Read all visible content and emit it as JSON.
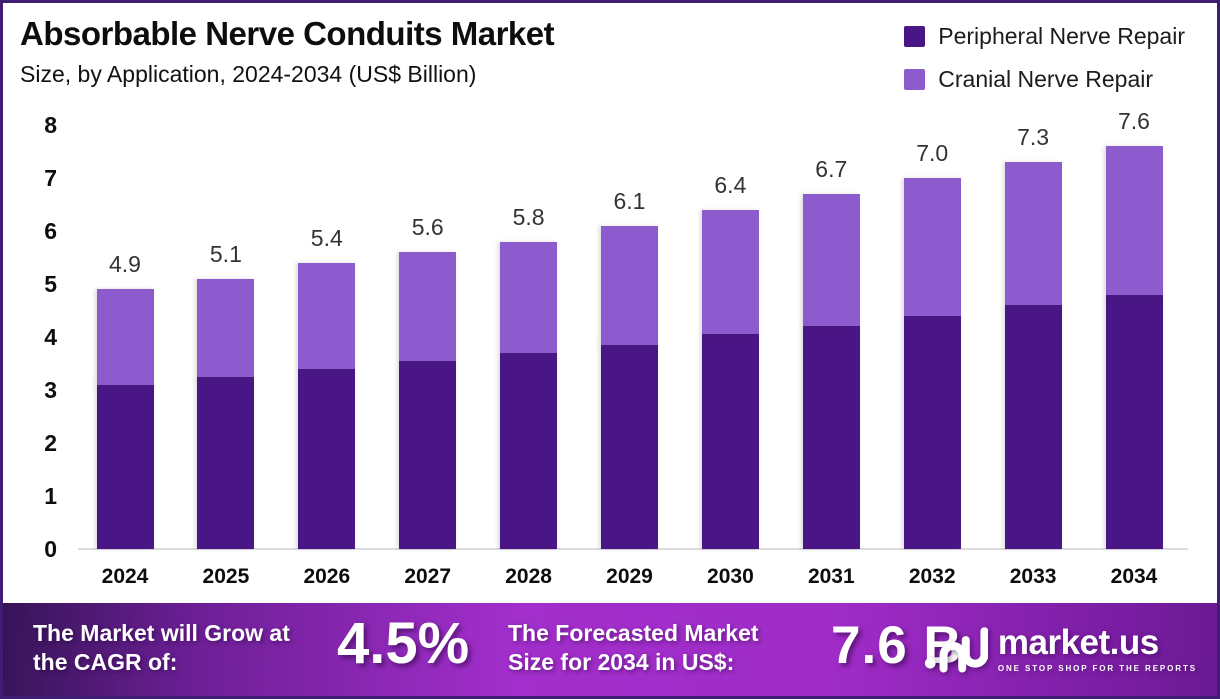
{
  "header": {
    "title": "Absorbable Nerve Conduits Market",
    "subtitle": "Size, by Application, 2024-2034 (US$ Billion)"
  },
  "legend": [
    {
      "label": "Peripheral Nerve Repair",
      "color": "#4a1685"
    },
    {
      "label": "Cranial Nerve Repair",
      "color": "#8c5ccf"
    }
  ],
  "chart_data": {
    "type": "bar",
    "stacked": true,
    "title": "Absorbable Nerve Conduits Market Size, by Application, 2024-2034 (US$ Billion)",
    "categories": [
      "2024",
      "2025",
      "2026",
      "2027",
      "2028",
      "2029",
      "2030",
      "2031",
      "2032",
      "2033",
      "2034"
    ],
    "series": [
      {
        "name": "Peripheral Nerve Repair",
        "color": "#4a1685",
        "values": [
          3.1,
          3.25,
          3.4,
          3.55,
          3.7,
          3.85,
          4.05,
          4.2,
          4.4,
          4.6,
          4.8
        ]
      },
      {
        "name": "Cranial Nerve Repair",
        "color": "#8c5ccf",
        "values": [
          1.8,
          1.85,
          2.0,
          2.05,
          2.1,
          2.25,
          2.35,
          2.5,
          2.6,
          2.7,
          2.8
        ]
      }
    ],
    "totals": [
      4.9,
      5.1,
      5.4,
      5.6,
      5.8,
      6.1,
      6.4,
      6.7,
      7.0,
      7.3,
      7.6
    ],
    "total_labels": [
      "4.9",
      "5.1",
      "5.4",
      "5.6",
      "5.8",
      "6.1",
      "6.4",
      "6.7",
      "7.0",
      "7.3",
      "7.6"
    ],
    "xlabel": "",
    "ylabel": "",
    "ylim": [
      0,
      8
    ],
    "yticks": [
      0,
      1,
      2,
      3,
      4,
      5,
      6,
      7,
      8
    ],
    "grid": false,
    "legend_position": "top-right"
  },
  "banner": {
    "cagr_label": "The Market will Grow at the CAGR of:",
    "cagr_value": "4.5%",
    "forecast_label": "The Forecasted Market Size for 2034 in US$:",
    "forecast_value": "7.6 B",
    "logo": {
      "name": "market.us",
      "tagline": "ONE STOP SHOP FOR THE REPORTS"
    }
  },
  "colors": {
    "border": "#3f1d72",
    "banner_dark": "#361458",
    "banner_bright": "#a22ecb",
    "baseline": "#dcdcdc"
  }
}
